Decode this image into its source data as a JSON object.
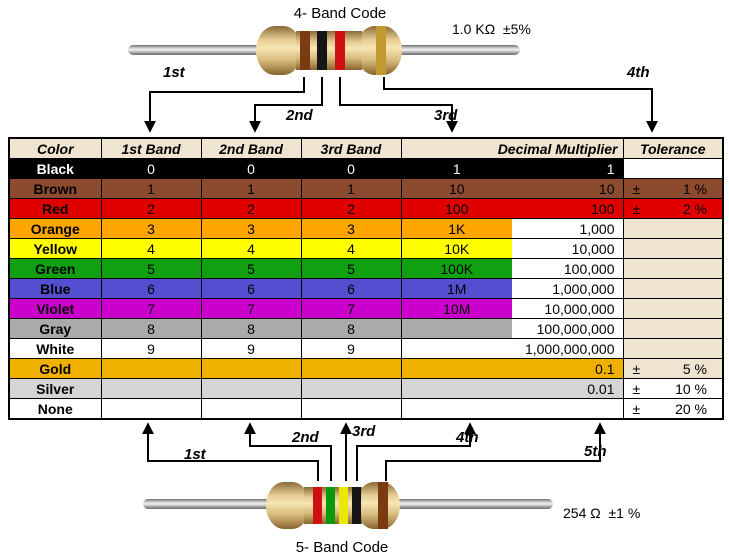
{
  "top_resistor": {
    "title": "4- Band Code",
    "value": "1.0 KΩ  ±5%",
    "arrow_labels": [
      "1st",
      "2nd",
      "3rd",
      "4th"
    ],
    "bands": [
      "brown",
      "black",
      "red",
      "gold"
    ],
    "band_colors": [
      "#7A3B10",
      "#161616",
      "#D01010",
      "#C09A30"
    ]
  },
  "bottom_resistor": {
    "title": "5- Band Code",
    "value": "254 Ω  ±1 %",
    "arrow_labels": [
      "1st",
      "2nd",
      "3rd",
      "4th",
      "5th"
    ],
    "bands": [
      "red",
      "green",
      "yellow",
      "black",
      "brown"
    ],
    "band_colors": [
      "#D01010",
      "#0C9A0C",
      "#E8E800",
      "#161616",
      "#7A3B10"
    ]
  },
  "table": {
    "headers": [
      "Color",
      "1st Band",
      "2nd Band",
      "3rd Band",
      "Decimal Multiplier",
      "Tolerance"
    ],
    "header_bg": "#EEE4D0",
    "rows": [
      {
        "name": "Black",
        "b1": "0",
        "b2": "0",
        "b3": "0",
        "m1": "1",
        "m2": "1",
        "bg": "#000000",
        "fg": "#FFFFFF",
        "m2_bg": "#000000",
        "m2_fg": "#FFFFFF",
        "tol_sign": "",
        "tol_value": "",
        "tol_bg": "#FFFFFF"
      },
      {
        "name": "Brown",
        "b1": "1",
        "b2": "1",
        "b3": "1",
        "m1": "10",
        "m2": "10",
        "bg": "#8C4A2F",
        "fg": "#000000",
        "m2_bg": "#8C4A2F",
        "m2_fg": "#000000",
        "tol_sign": "±",
        "tol_value": "1 %",
        "tol_bg": "#8C4A2F"
      },
      {
        "name": "Red",
        "b1": "2",
        "b2": "2",
        "b3": "2",
        "m1": "100",
        "m2": "100",
        "bg": "#E00000",
        "fg": "#000000",
        "m2_bg": "#E00000",
        "m2_fg": "#000000",
        "tol_sign": "±",
        "tol_value": "2 %",
        "tol_bg": "#E00000"
      },
      {
        "name": "Orange",
        "b1": "3",
        "b2": "3",
        "b3": "3",
        "m1": "1K",
        "m2": "1,000",
        "bg": "#FFA500",
        "fg": "#000000",
        "m2_bg": "#FFFFFF",
        "m2_fg": "#000000",
        "tol_sign": "",
        "tol_value": "",
        "tol_bg": "#EEE4D0"
      },
      {
        "name": "Yellow",
        "b1": "4",
        "b2": "4",
        "b3": "4",
        "m1": "10K",
        "m2": "10,000",
        "bg": "#FFFF00",
        "fg": "#000000",
        "m2_bg": "#FFFFFF",
        "m2_fg": "#000000",
        "tol_sign": "",
        "tol_value": "",
        "tol_bg": "#EEE4D0"
      },
      {
        "name": "Green",
        "b1": "5",
        "b2": "5",
        "b3": "5",
        "m1": "100K",
        "m2": "100,000",
        "bg": "#10A010",
        "fg": "#000000",
        "m2_bg": "#FFFFFF",
        "m2_fg": "#000000",
        "tol_sign": "",
        "tol_value": "",
        "tol_bg": "#EEE4D0"
      },
      {
        "name": "Blue",
        "b1": "6",
        "b2": "6",
        "b3": "6",
        "m1": "1M",
        "m2": "1,000,000",
        "bg": "#544FD0",
        "fg": "#000000",
        "m2_bg": "#FFFFFF",
        "m2_fg": "#000000",
        "tol_sign": "",
        "tol_value": "",
        "tol_bg": "#EEE4D0"
      },
      {
        "name": "Violet",
        "b1": "7",
        "b2": "7",
        "b3": "7",
        "m1": "10M",
        "m2": "10,000,000",
        "bg": "#CC00CC",
        "fg": "#000000",
        "m2_bg": "#FFFFFF",
        "m2_fg": "#000000",
        "tol_sign": "",
        "tol_value": "",
        "tol_bg": "#EEE4D0"
      },
      {
        "name": "Gray",
        "b1": "8",
        "b2": "8",
        "b3": "8",
        "m1": "",
        "m2": "100,000,000",
        "bg": "#AAAAAA",
        "fg": "#000000",
        "m2_bg": "#FFFFFF",
        "m2_fg": "#000000",
        "tol_sign": "",
        "tol_value": "",
        "tol_bg": "#EEE4D0"
      },
      {
        "name": "White",
        "b1": "9",
        "b2": "9",
        "b3": "9",
        "m1": "",
        "m2": "1,000,000,000",
        "bg": "#FFFFFF",
        "fg": "#000000",
        "m2_bg": "#FFFFFF",
        "m2_fg": "#000000",
        "tol_sign": "",
        "tol_value": "",
        "tol_bg": "#EEE4D0"
      },
      {
        "name": "Gold",
        "b1": "",
        "b2": "",
        "b3": "",
        "m1": "",
        "m2": "0.1",
        "bg": "#F0B000",
        "fg": "#000000",
        "m2_bg": "#F0B000",
        "m2_fg": "#000000",
        "tol_sign": "±",
        "tol_value": "5 %",
        "tol_bg": "#EEE4D0"
      },
      {
        "name": "Silver",
        "b1": "",
        "b2": "",
        "b3": "",
        "m1": "",
        "m2": "0.01",
        "bg": "#D5D5D5",
        "fg": "#000000",
        "m2_bg": "#D5D5D5",
        "m2_fg": "#000000",
        "tol_sign": "±",
        "tol_value": "10 %",
        "tol_bg": "#FFFFFF"
      },
      {
        "name": "None",
        "b1": "",
        "b2": "",
        "b3": "",
        "m1": "",
        "m2": "",
        "bg": "#FFFFFF",
        "fg": "#000000",
        "m2_bg": "#FFFFFF",
        "m2_fg": "#000000",
        "tol_sign": "±",
        "tol_value": "20 %",
        "tol_bg": "#FFFFFF"
      }
    ]
  }
}
